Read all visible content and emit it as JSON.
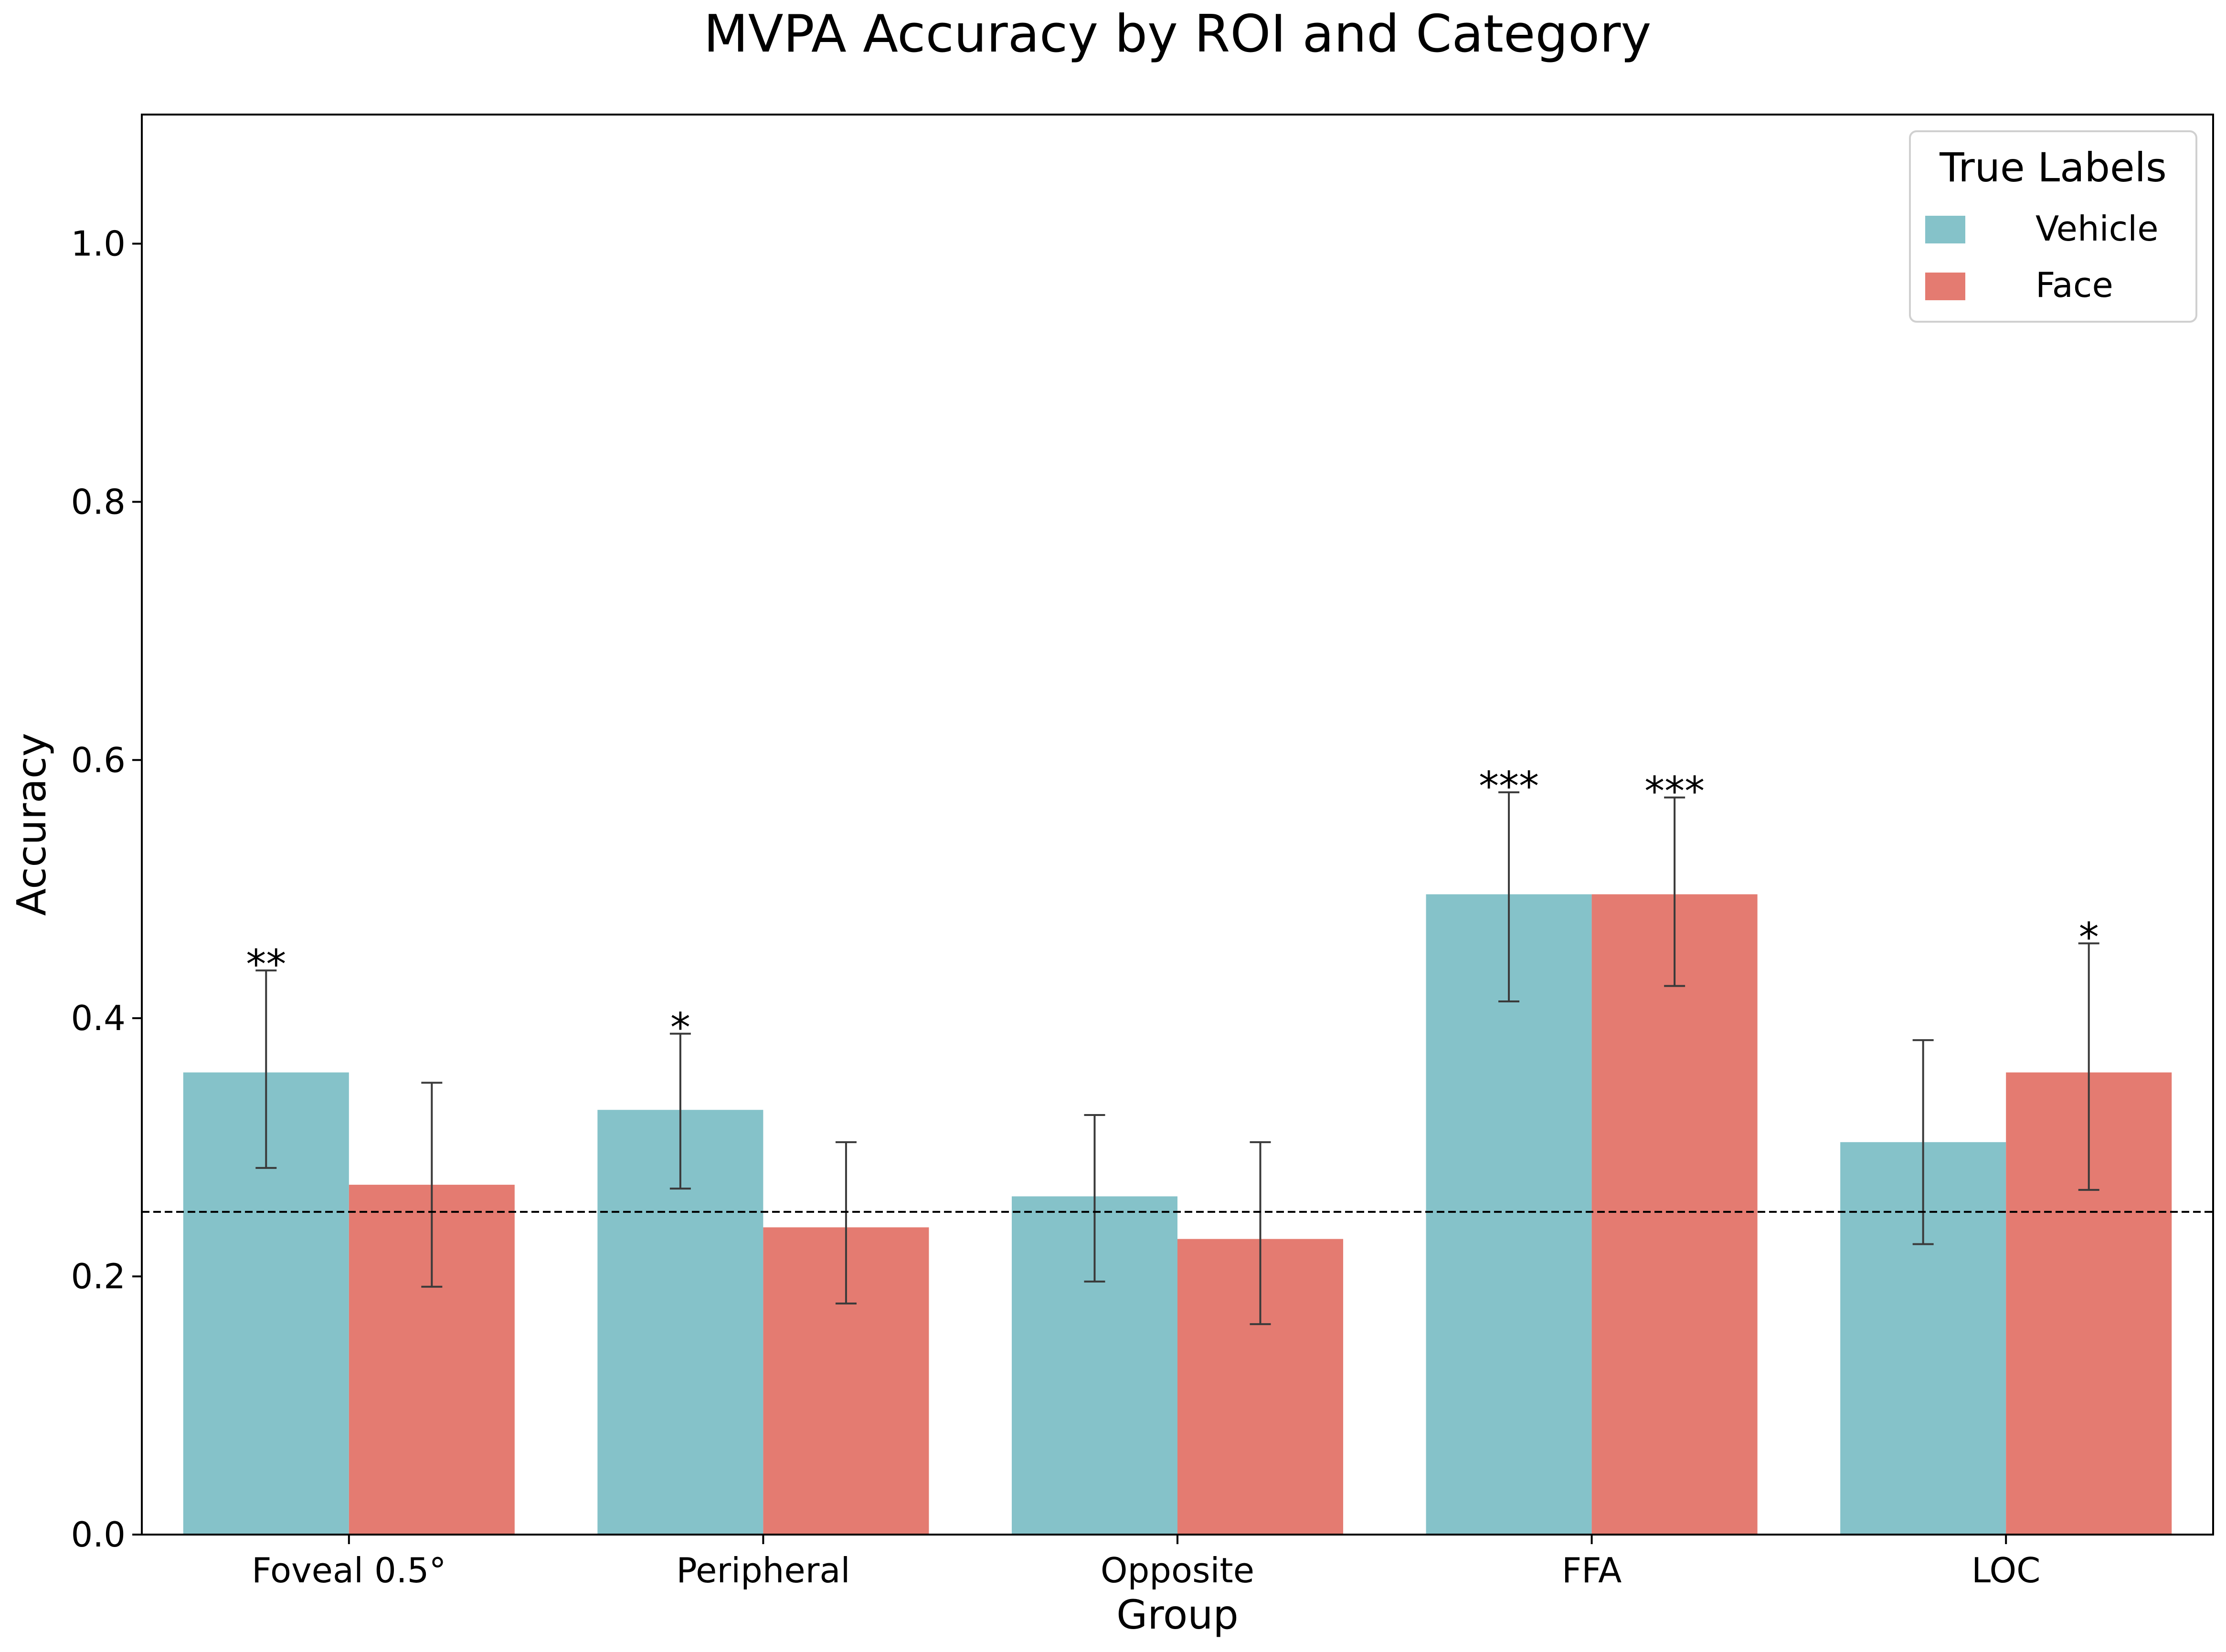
{
  "chart_data": {
    "type": "bar",
    "title": "MVPA Accuracy by ROI and Category",
    "xlabel": "Group",
    "ylabel": "Accuracy",
    "ylim": [
      0,
      1.1
    ],
    "yticks": [
      "0.0",
      "0.2",
      "0.4",
      "0.6",
      "0.8",
      "1.0"
    ],
    "categories": [
      "Foveal 0.5°",
      "Peripheral",
      "Opposite",
      "FFA",
      "LOC"
    ],
    "chance_line": 0.25,
    "grid": false,
    "legend": {
      "title": "True Labels",
      "position": "top-right"
    },
    "series": [
      {
        "name": "Vehicle",
        "color": "#85c2c9",
        "values": [
          0.358,
          0.329,
          0.262,
          0.496,
          0.304
        ],
        "err_low": [
          0.284,
          0.268,
          0.196,
          0.413,
          0.225
        ],
        "err_high": [
          0.437,
          0.388,
          0.325,
          0.575,
          0.383
        ],
        "significance": [
          "**",
          "*",
          "",
          "***",
          ""
        ]
      },
      {
        "name": "Face",
        "color": "#e47b71",
        "values": [
          0.271,
          0.238,
          0.229,
          0.496,
          0.358
        ],
        "err_low": [
          0.192,
          0.179,
          0.163,
          0.425,
          0.267
        ],
        "err_high": [
          0.35,
          0.304,
          0.304,
          0.571,
          0.458
        ],
        "significance": [
          "",
          "",
          "",
          "***",
          "*"
        ]
      }
    ]
  }
}
